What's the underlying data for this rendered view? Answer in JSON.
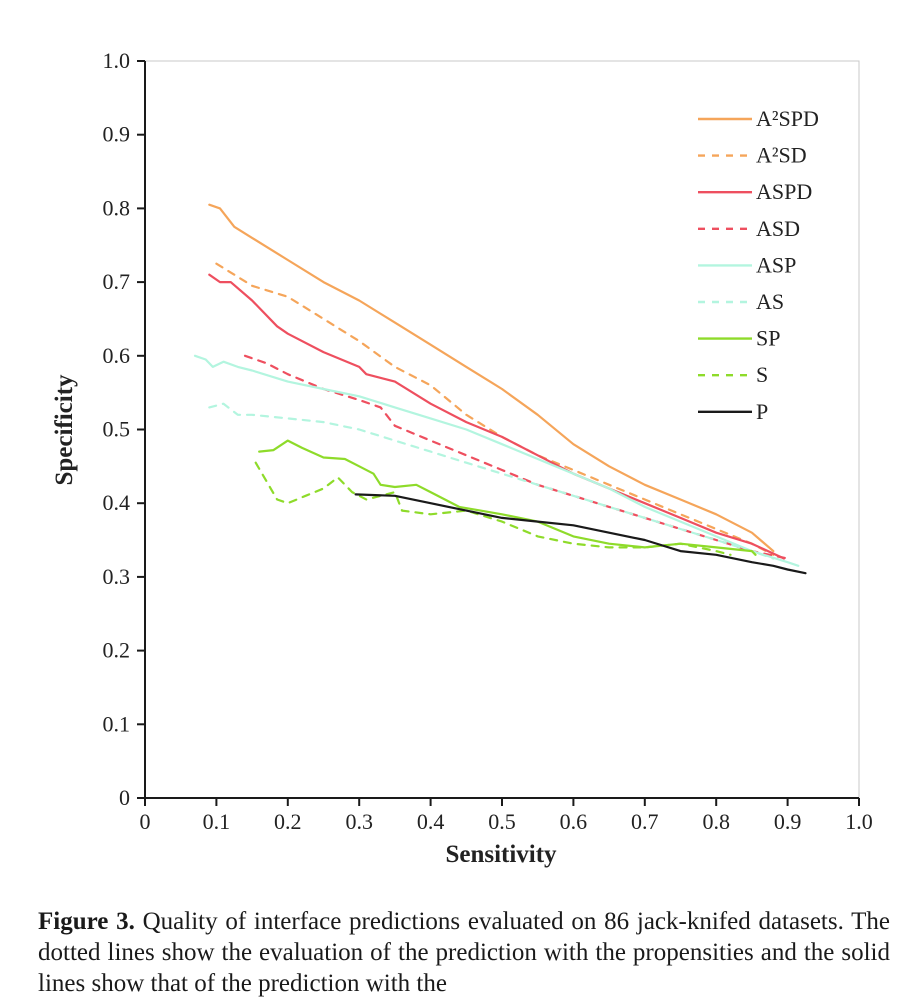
{
  "chart_data": {
    "type": "line",
    "xlabel": "Sensitivity",
    "ylabel": "Specificity",
    "xlim": [
      0,
      1.0
    ],
    "ylim": [
      0,
      1.0
    ],
    "x_ticks": [
      "0",
      "0.1",
      "0.2",
      "0.3",
      "0.4",
      "0.5",
      "0.6",
      "0.7",
      "0.8",
      "0.9",
      "1.0"
    ],
    "y_ticks": [
      "0",
      "0.1",
      "0.2",
      "0.3",
      "0.4",
      "0.5",
      "0.6",
      "0.7",
      "0.8",
      "0.9",
      "1.0"
    ],
    "grid": false,
    "legend_position": "top-right",
    "series": [
      {
        "name": "A²SPD",
        "color": "#f5a55a",
        "dash": false,
        "points": [
          [
            0.09,
            0.805
          ],
          [
            0.105,
            0.8
          ],
          [
            0.125,
            0.775
          ],
          [
            0.15,
            0.76
          ],
          [
            0.2,
            0.73
          ],
          [
            0.25,
            0.7
          ],
          [
            0.3,
            0.675
          ],
          [
            0.35,
            0.645
          ],
          [
            0.4,
            0.615
          ],
          [
            0.45,
            0.585
          ],
          [
            0.5,
            0.555
          ],
          [
            0.55,
            0.52
          ],
          [
            0.6,
            0.48
          ],
          [
            0.65,
            0.45
          ],
          [
            0.7,
            0.425
          ],
          [
            0.75,
            0.405
          ],
          [
            0.8,
            0.385
          ],
          [
            0.85,
            0.36
          ],
          [
            0.88,
            0.335
          ]
        ]
      },
      {
        "name": "A²SD",
        "color": "#f5a55a",
        "dash": true,
        "points": [
          [
            0.1,
            0.725
          ],
          [
            0.125,
            0.71
          ],
          [
            0.15,
            0.695
          ],
          [
            0.2,
            0.68
          ],
          [
            0.25,
            0.65
          ],
          [
            0.3,
            0.62
          ],
          [
            0.35,
            0.585
          ],
          [
            0.4,
            0.56
          ],
          [
            0.45,
            0.52
          ],
          [
            0.5,
            0.49
          ],
          [
            0.55,
            0.465
          ],
          [
            0.6,
            0.445
          ],
          [
            0.65,
            0.425
          ],
          [
            0.7,
            0.405
          ],
          [
            0.75,
            0.385
          ],
          [
            0.8,
            0.365
          ],
          [
            0.85,
            0.345
          ],
          [
            0.88,
            0.33
          ]
        ]
      },
      {
        "name": "ASPD",
        "color": "#ee4f5f",
        "dash": false,
        "points": [
          [
            0.09,
            0.71
          ],
          [
            0.105,
            0.7
          ],
          [
            0.12,
            0.7
          ],
          [
            0.15,
            0.675
          ],
          [
            0.185,
            0.64
          ],
          [
            0.2,
            0.63
          ],
          [
            0.25,
            0.605
          ],
          [
            0.3,
            0.585
          ],
          [
            0.31,
            0.575
          ],
          [
            0.35,
            0.565
          ],
          [
            0.4,
            0.535
          ],
          [
            0.45,
            0.51
          ],
          [
            0.5,
            0.49
          ],
          [
            0.55,
            0.465
          ],
          [
            0.6,
            0.44
          ],
          [
            0.65,
            0.42
          ],
          [
            0.7,
            0.4
          ],
          [
            0.75,
            0.38
          ],
          [
            0.8,
            0.36
          ],
          [
            0.85,
            0.345
          ],
          [
            0.895,
            0.325
          ]
        ]
      },
      {
        "name": "ASD",
        "color": "#ee4f5f",
        "dash": true,
        "points": [
          [
            0.14,
            0.6
          ],
          [
            0.17,
            0.59
          ],
          [
            0.2,
            0.575
          ],
          [
            0.25,
            0.555
          ],
          [
            0.3,
            0.54
          ],
          [
            0.33,
            0.53
          ],
          [
            0.35,
            0.505
          ],
          [
            0.4,
            0.485
          ],
          [
            0.45,
            0.465
          ],
          [
            0.5,
            0.445
          ],
          [
            0.55,
            0.425
          ],
          [
            0.6,
            0.41
          ],
          [
            0.65,
            0.395
          ],
          [
            0.7,
            0.38
          ],
          [
            0.75,
            0.365
          ],
          [
            0.8,
            0.35
          ],
          [
            0.85,
            0.335
          ],
          [
            0.9,
            0.325
          ]
        ]
      },
      {
        "name": "ASP",
        "color": "#b3f5df",
        "dash": false,
        "points": [
          [
            0.07,
            0.6
          ],
          [
            0.085,
            0.595
          ],
          [
            0.095,
            0.585
          ],
          [
            0.11,
            0.592
          ],
          [
            0.13,
            0.585
          ],
          [
            0.15,
            0.58
          ],
          [
            0.2,
            0.565
          ],
          [
            0.25,
            0.555
          ],
          [
            0.3,
            0.545
          ],
          [
            0.35,
            0.53
          ],
          [
            0.4,
            0.515
          ],
          [
            0.45,
            0.5
          ],
          [
            0.5,
            0.48
          ],
          [
            0.55,
            0.46
          ],
          [
            0.6,
            0.44
          ],
          [
            0.65,
            0.42
          ],
          [
            0.7,
            0.395
          ],
          [
            0.75,
            0.375
          ],
          [
            0.8,
            0.355
          ],
          [
            0.85,
            0.335
          ],
          [
            0.9,
            0.32
          ],
          [
            0.915,
            0.315
          ]
        ]
      },
      {
        "name": "AS",
        "color": "#b3f5df",
        "dash": true,
        "points": [
          [
            0.09,
            0.53
          ],
          [
            0.11,
            0.535
          ],
          [
            0.13,
            0.52
          ],
          [
            0.15,
            0.52
          ],
          [
            0.2,
            0.515
          ],
          [
            0.25,
            0.51
          ],
          [
            0.3,
            0.5
          ],
          [
            0.35,
            0.485
          ],
          [
            0.4,
            0.47
          ],
          [
            0.45,
            0.455
          ],
          [
            0.5,
            0.44
          ],
          [
            0.55,
            0.425
          ],
          [
            0.6,
            0.41
          ],
          [
            0.65,
            0.395
          ],
          [
            0.7,
            0.38
          ],
          [
            0.75,
            0.365
          ],
          [
            0.8,
            0.35
          ],
          [
            0.85,
            0.335
          ],
          [
            0.88,
            0.325
          ]
        ]
      },
      {
        "name": "SP",
        "color": "#8edb2a",
        "dash": false,
        "points": [
          [
            0.16,
            0.47
          ],
          [
            0.18,
            0.472
          ],
          [
            0.2,
            0.485
          ],
          [
            0.22,
            0.475
          ],
          [
            0.25,
            0.462
          ],
          [
            0.28,
            0.46
          ],
          [
            0.3,
            0.45
          ],
          [
            0.32,
            0.44
          ],
          [
            0.33,
            0.425
          ],
          [
            0.35,
            0.422
          ],
          [
            0.38,
            0.425
          ],
          [
            0.4,
            0.415
          ],
          [
            0.44,
            0.395
          ],
          [
            0.5,
            0.385
          ],
          [
            0.55,
            0.375
          ],
          [
            0.6,
            0.355
          ],
          [
            0.65,
            0.345
          ],
          [
            0.7,
            0.34
          ],
          [
            0.75,
            0.345
          ],
          [
            0.8,
            0.34
          ],
          [
            0.85,
            0.335
          ],
          [
            0.855,
            0.33
          ]
        ]
      },
      {
        "name": "S",
        "color": "#8edb2a",
        "dash": true,
        "points": [
          [
            0.155,
            0.455
          ],
          [
            0.17,
            0.43
          ],
          [
            0.185,
            0.405
          ],
          [
            0.2,
            0.4
          ],
          [
            0.225,
            0.41
          ],
          [
            0.25,
            0.42
          ],
          [
            0.27,
            0.435
          ],
          [
            0.29,
            0.415
          ],
          [
            0.31,
            0.405
          ],
          [
            0.35,
            0.415
          ],
          [
            0.36,
            0.39
          ],
          [
            0.4,
            0.385
          ],
          [
            0.45,
            0.39
          ],
          [
            0.5,
            0.375
          ],
          [
            0.55,
            0.355
          ],
          [
            0.6,
            0.345
          ],
          [
            0.65,
            0.34
          ],
          [
            0.7,
            0.34
          ],
          [
            0.75,
            0.345
          ],
          [
            0.8,
            0.335
          ],
          [
            0.82,
            0.33
          ]
        ]
      },
      {
        "name": "P",
        "color": "#1a1a1a",
        "dash": false,
        "points": [
          [
            0.295,
            0.412
          ],
          [
            0.35,
            0.41
          ],
          [
            0.4,
            0.4
          ],
          [
            0.45,
            0.39
          ],
          [
            0.5,
            0.38
          ],
          [
            0.55,
            0.375
          ],
          [
            0.6,
            0.37
          ],
          [
            0.65,
            0.36
          ],
          [
            0.7,
            0.35
          ],
          [
            0.75,
            0.335
          ],
          [
            0.8,
            0.33
          ],
          [
            0.85,
            0.32
          ],
          [
            0.88,
            0.315
          ],
          [
            0.9,
            0.31
          ],
          [
            0.925,
            0.305
          ]
        ]
      }
    ]
  },
  "caption": {
    "label": "Figure 3.",
    "text": " Quality of interface predictions evaluated on 86 jack-knifed datasets. The dotted lines show the evaluation of the prediction with the propensities and the solid lines show that of the prediction with the"
  }
}
